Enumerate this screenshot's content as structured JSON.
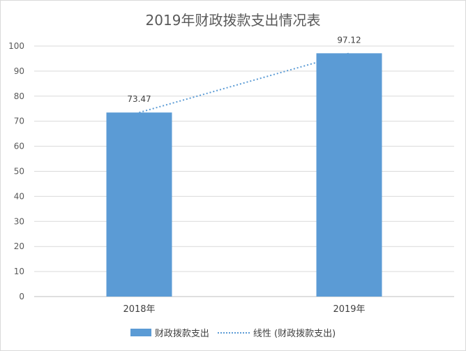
{
  "chart_data": {
    "type": "bar",
    "title": "2019年财政拨款支出情况表",
    "categories": [
      "2018年",
      "2019年"
    ],
    "series": [
      {
        "name": "财政拨款支出",
        "values": [
          73.47,
          97.12
        ],
        "color": "#5b9bd5"
      }
    ],
    "trendline": {
      "name": "线性 (财政拨款支出)",
      "style": "dotted",
      "color": "#5b9bd5"
    },
    "data_labels": [
      "73.47",
      "97.12"
    ],
    "ylim": [
      0,
      100
    ],
    "yticks": [
      "0",
      "10",
      "20",
      "30",
      "40",
      "50",
      "60",
      "70",
      "80",
      "90",
      "100"
    ],
    "grid": true,
    "legend_position": "bottom"
  }
}
